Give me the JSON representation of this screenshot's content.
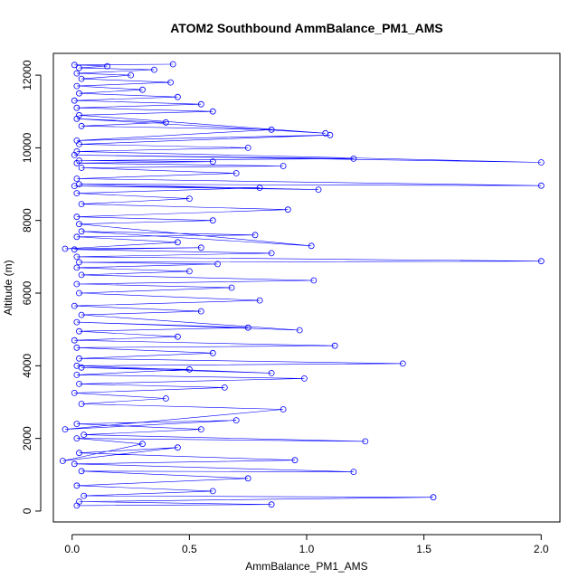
{
  "chart_data": {
    "type": "scatter",
    "title": "ATOM2 Southbound AmmBalance_PM1_AMS",
    "xlabel": "AmmBalance_PM1_AMS",
    "ylabel": "Altitude (m)",
    "xlim": [
      -0.08,
      2.08
    ],
    "ylim": [
      -300,
      12600
    ],
    "x_ticks": [
      0.0,
      0.5,
      1.0,
      1.5,
      2.0
    ],
    "x_tick_labels": [
      "0.0",
      "0.5",
      "1.0",
      "1.5",
      "2.0"
    ],
    "y_ticks": [
      0,
      2000,
      4000,
      6000,
      8000,
      10000,
      12000
    ],
    "y_tick_labels": [
      "0",
      "2000",
      "4000",
      "6000",
      "8000",
      "10000",
      "12000"
    ],
    "grid": false,
    "series": [
      {
        "color": "#0000ff",
        "marker": "open-circle",
        "connected": true,
        "x": [
          0.02,
          0.85,
          0.03,
          1.54,
          0.05,
          0.6,
          0.02,
          0.75,
          0.04,
          1.2,
          0.01,
          0.95,
          0.03,
          0.45,
          -0.04,
          0.3,
          0.02,
          1.25,
          0.05,
          0.55,
          0.02,
          0.7,
          -0.03,
          0.9,
          0.04,
          0.4,
          0.01,
          0.65,
          0.03,
          0.99,
          0.02,
          0.5,
          0.04,
          0.85,
          0.02,
          1.41,
          0.03,
          0.6,
          0.02,
          1.12,
          0.01,
          0.45,
          0.03,
          0.75,
          0.02,
          0.97,
          0.04,
          0.55,
          0.01,
          0.8,
          0.03,
          0.68,
          0.02,
          1.03,
          0.04,
          0.5,
          0.02,
          0.62,
          0.03,
          2.0,
          0.02,
          0.85,
          0.01,
          0.55,
          -0.03,
          0.45,
          0.02,
          0.78,
          0.04,
          1.02,
          0.03,
          0.6,
          0.02,
          0.92,
          0.04,
          0.5,
          0.02,
          0.8,
          0.01,
          1.05,
          0.03,
          2.0,
          0.02,
          0.7,
          0.04,
          0.9,
          0.02,
          0.6,
          0.03,
          1.2,
          0.01,
          2.0,
          0.02,
          0.75,
          0.03,
          1.1,
          0.02,
          0.85,
          0.04,
          0.4,
          0.02,
          1.08,
          0.03,
          0.6,
          0.02,
          0.55,
          0.01,
          0.45,
          0.03,
          0.3,
          0.02,
          0.42,
          0.04,
          0.25,
          0.02,
          0.35,
          0.03,
          0.15,
          0.01,
          0.43
        ],
        "y": [
          150,
          180,
          260,
          380,
          420,
          550,
          700,
          900,
          1100,
          1080,
          1300,
          1400,
          1600,
          1750,
          1380,
          1850,
          2000,
          1920,
          2100,
          2250,
          2400,
          2500,
          2250,
          2800,
          2950,
          3100,
          3250,
          3400,
          3500,
          3650,
          3750,
          3900,
          3950,
          3800,
          4000,
          4060,
          4200,
          4350,
          4500,
          4550,
          4700,
          4800,
          4950,
          5050,
          5200,
          4980,
          5400,
          5500,
          5650,
          5800,
          6000,
          6150,
          6250,
          6350,
          6500,
          6600,
          6700,
          6800,
          6850,
          6880,
          7000,
          7100,
          7200,
          7250,
          7220,
          7400,
          7550,
          7600,
          7700,
          7300,
          7900,
          8000,
          8100,
          8300,
          8450,
          8600,
          8750,
          8900,
          8950,
          8850,
          9000,
          8960,
          9150,
          9300,
          9450,
          9500,
          9580,
          9620,
          9650,
          9700,
          9800,
          9600,
          9900,
          10000,
          10100,
          10350,
          10200,
          10500,
          10600,
          10700,
          10800,
          10400,
          10900,
          11000,
          11100,
          11200,
          11300,
          11400,
          11500,
          11600,
          11700,
          11800,
          11900,
          12000,
          12050,
          12150,
          12200,
          12250,
          12280,
          12300
        ]
      }
    ]
  }
}
